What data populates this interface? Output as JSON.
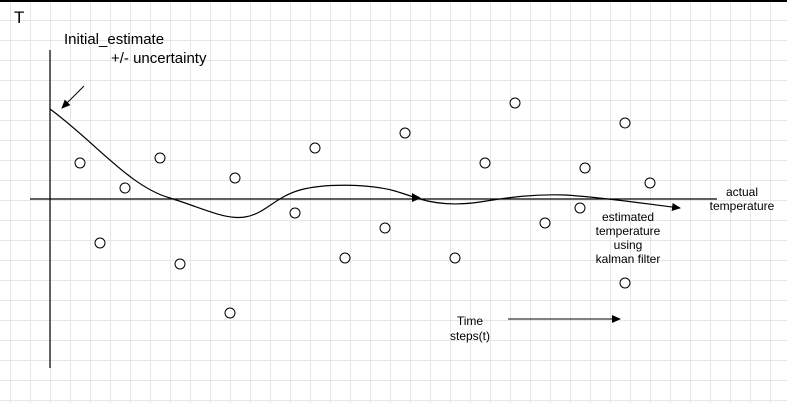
{
  "y_axis_label": "T",
  "initial_estimate": {
    "line1": "Initial_estimate",
    "line2": "+/- uncertainty"
  },
  "actual_label": {
    "line1": "actual",
    "line2": "temperature"
  },
  "filter_label": {
    "line1": "estimated",
    "line2": "temperature",
    "line3": "using",
    "line4": "kalman filter"
  },
  "time_label": {
    "line1": "Time",
    "line2": "steps(t)"
  },
  "colors": {
    "ink": "#000000",
    "grid": "#e6e6e6",
    "background": "#ffffff"
  },
  "measurement_count": 22
}
